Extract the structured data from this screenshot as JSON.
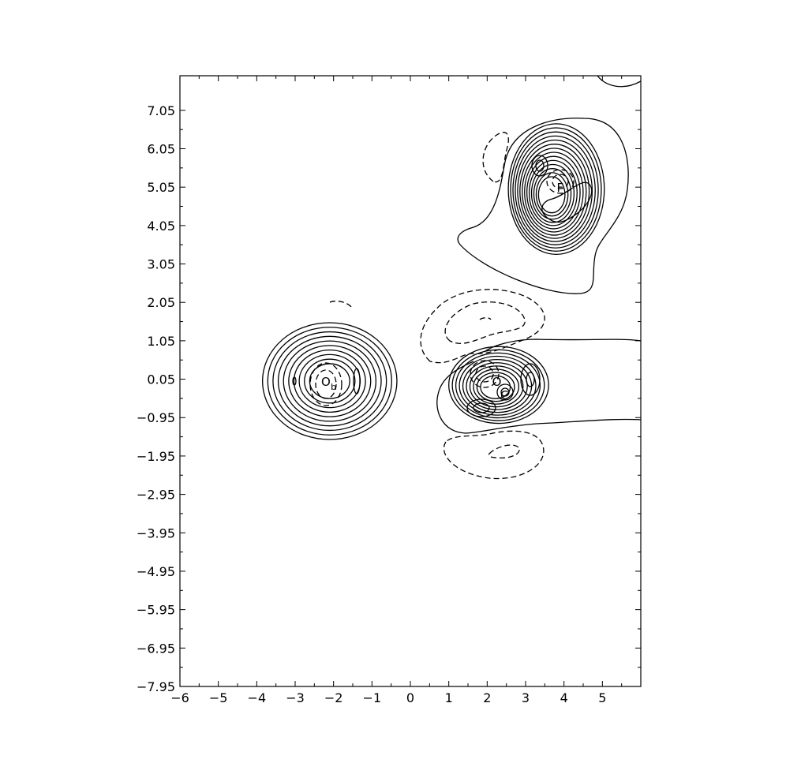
{
  "chart_data": {
    "type": "contour",
    "title": "",
    "xlabel": "",
    "ylabel": "",
    "xlim": [
      -6,
      6
    ],
    "ylim": [
      -7.95,
      7.95
    ],
    "x_ticks": [
      -6,
      -5,
      -4,
      -3,
      -2,
      -1,
      0,
      1,
      2,
      3,
      4,
      5
    ],
    "x_tick_labels": [
      "−6",
      "−5",
      "−4",
      "−3",
      "−2",
      "−1",
      "0",
      "1",
      "2",
      "3",
      "4",
      "5"
    ],
    "y_ticks": [
      7.05,
      6.05,
      5.05,
      4.05,
      3.05,
      2.05,
      1.05,
      0.05,
      -0.95,
      -1.95,
      -2.95,
      -3.95,
      -4.95,
      -5.95,
      -6.95,
      -7.95
    ],
    "y_tick_labels": [
      "7.05",
      "6.05",
      "5.05",
      "4.05",
      "3.05",
      "2.05",
      "1.05",
      "0.05",
      "−0.95",
      "−1.95",
      "−2.95",
      "−3.95",
      "−4.95",
      "−5.95",
      "−6.95",
      "−7.95"
    ],
    "grid": false,
    "legend": "none",
    "line_styles": {
      "positive": "solid",
      "negative": "dashed"
    },
    "atoms": [
      {
        "label": "O",
        "sub": "",
        "x": -2.2,
        "y": 0.0
      },
      {
        "label": "",
        "sub": "b",
        "x": -2.0,
        "y": -0.1
      },
      {
        "label": "O",
        "sub": "",
        "x": 2.25,
        "y": 0.0
      },
      {
        "label": "C",
        "sub": "",
        "x": 2.45,
        "y": -0.35
      },
      {
        "label": "F",
        "sub": "",
        "x": 3.9,
        "y": 5.05
      }
    ],
    "contour_groups": [
      {
        "name": "oxygen-left",
        "center": [
          -2.1,
          0.0
        ],
        "rx_max": 1.75,
        "ry_max": 1.6,
        "levels": 10,
        "sign": "positive"
      },
      {
        "name": "fluorine",
        "center": [
          3.8,
          5.0
        ],
        "rx_max": 1.25,
        "ry_max": 1.7,
        "levels": 14,
        "sign": "positive"
      },
      {
        "name": "carbonyl",
        "center": [
          2.3,
          -0.1
        ],
        "rx_max": 1.3,
        "ry_max": 1.0,
        "levels": 10,
        "sign": "positive"
      },
      {
        "name": "negative-lobe-upper",
        "center": [
          1.7,
          1.6
        ],
        "sign": "negative"
      },
      {
        "name": "negative-lobe-lower",
        "center": [
          2.2,
          -1.9
        ],
        "sign": "negative"
      }
    ]
  }
}
